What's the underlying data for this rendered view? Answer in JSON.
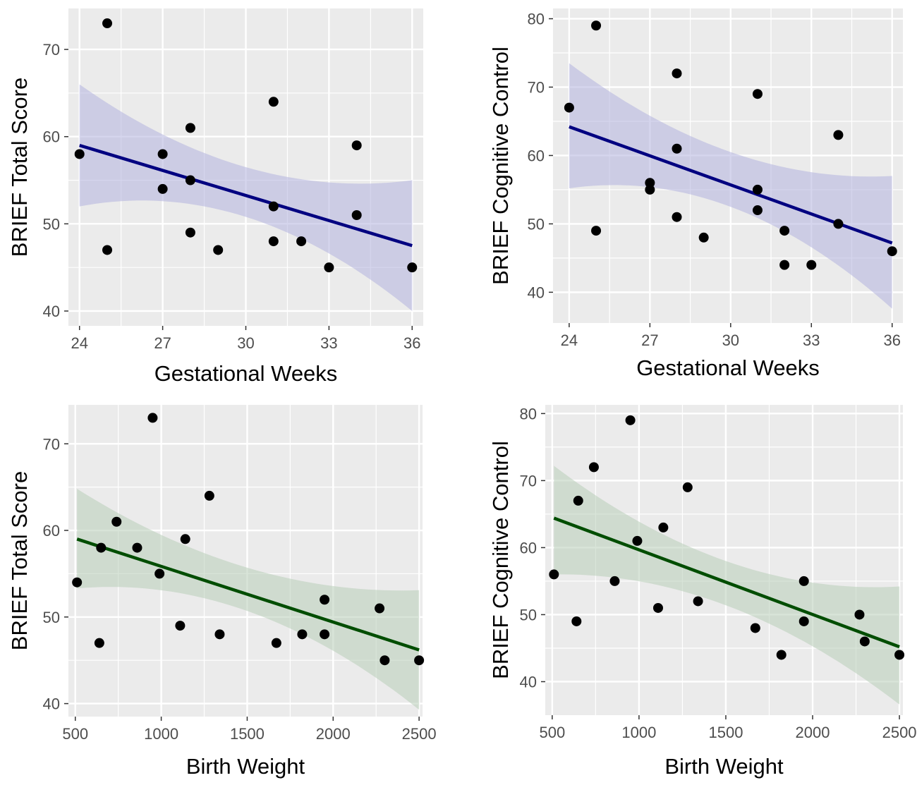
{
  "chart_data": [
    {
      "type": "scatter",
      "xlabel": "Gestational Weeks",
      "ylabel": "BRIEF Total Score",
      "xlim": [
        23.6,
        36.4
      ],
      "ylim": [
        38.3,
        74.7
      ],
      "xticks": [
        24,
        27,
        30,
        33,
        36
      ],
      "yticks": [
        40,
        50,
        60,
        70
      ],
      "grid": true,
      "points": [
        [
          24,
          58
        ],
        [
          25,
          73
        ],
        [
          25,
          47
        ],
        [
          27,
          58
        ],
        [
          27,
          54
        ],
        [
          28,
          61
        ],
        [
          28,
          55
        ],
        [
          28,
          49
        ],
        [
          29,
          47
        ],
        [
          31,
          64
        ],
        [
          31,
          52
        ],
        [
          31,
          48
        ],
        [
          32,
          48
        ],
        [
          33,
          45
        ],
        [
          34,
          59
        ],
        [
          34,
          51
        ],
        [
          36,
          45
        ]
      ],
      "fit": {
        "x": [
          24,
          36
        ],
        "y": [
          59,
          47.5
        ]
      },
      "band": {
        "x": [
          24,
          30,
          36
        ],
        "lower": [
          52,
          50.8,
          40
        ],
        "upper": [
          66,
          56.5,
          55
        ]
      },
      "line_color": "#000080",
      "band_color": "#b3b3de"
    },
    {
      "type": "scatter",
      "xlabel": "Gestational Weeks",
      "ylabel": "BRIEF Cognitive Control",
      "xlim": [
        23.4,
        36.4
      ],
      "ylim": [
        35.5,
        81.5
      ],
      "xticks": [
        24,
        27,
        30,
        33,
        36
      ],
      "yticks": [
        40,
        50,
        60,
        70,
        80
      ],
      "grid": true,
      "points": [
        [
          24,
          67
        ],
        [
          25,
          79
        ],
        [
          25,
          49
        ],
        [
          27,
          56
        ],
        [
          27,
          55
        ],
        [
          28,
          72
        ],
        [
          28,
          61
        ],
        [
          28,
          51
        ],
        [
          29,
          48
        ],
        [
          31,
          69
        ],
        [
          31,
          55
        ],
        [
          31,
          52
        ],
        [
          32,
          49
        ],
        [
          32,
          44
        ],
        [
          33,
          44
        ],
        [
          34,
          63
        ],
        [
          34,
          50
        ],
        [
          36,
          46
        ]
      ],
      "fit": {
        "x": [
          24,
          36
        ],
        "y": [
          64.2,
          47.2
        ]
      },
      "band": {
        "x": [
          24,
          30,
          36
        ],
        "lower": [
          55.2,
          52.5,
          37.6
        ],
        "upper": [
          73.5,
          60.5,
          57
        ]
      },
      "line_color": "#000080",
      "band_color": "#b3b3de"
    },
    {
      "type": "scatter",
      "xlabel": "Birth Weight",
      "ylabel": "BRIEF Total Score",
      "xlim": [
        460,
        2520
      ],
      "ylim": [
        38.5,
        74.5
      ],
      "xticks": [
        500,
        1000,
        1500,
        2000,
        2500
      ],
      "yticks": [
        40,
        50,
        60,
        70
      ],
      "grid": true,
      "points": [
        [
          510,
          54
        ],
        [
          640,
          47
        ],
        [
          650,
          58
        ],
        [
          740,
          61
        ],
        [
          860,
          58
        ],
        [
          950,
          73
        ],
        [
          990,
          55
        ],
        [
          1110,
          49
        ],
        [
          1140,
          59
        ],
        [
          1280,
          64
        ],
        [
          1340,
          48
        ],
        [
          1670,
          47
        ],
        [
          1820,
          48
        ],
        [
          1950,
          52
        ],
        [
          1950,
          48
        ],
        [
          2270,
          51
        ],
        [
          2300,
          45
        ],
        [
          2500,
          45
        ]
      ],
      "fit": {
        "x": [
          510,
          2500
        ],
        "y": [
          59,
          46.2
        ]
      },
      "band": {
        "x": [
          510,
          1500,
          2500
        ],
        "lower": [
          53.3,
          50.7,
          39.3
        ],
        "upper": [
          64.8,
          55.7,
          53.1
        ]
      },
      "line_color": "#004d00",
      "band_color": "#b8cdb8"
    },
    {
      "type": "scatter",
      "xlabel": "Birth Weight",
      "ylabel": "BRIEF Cognitive Control",
      "xlim": [
        460,
        2520
      ],
      "ylim": [
        35,
        81.3
      ],
      "xticks": [
        500,
        1000,
        1500,
        2000,
        2500
      ],
      "yticks": [
        40,
        50,
        60,
        70,
        80
      ],
      "grid": true,
      "points": [
        [
          510,
          56
        ],
        [
          640,
          49
        ],
        [
          650,
          67
        ],
        [
          740,
          72
        ],
        [
          860,
          55
        ],
        [
          950,
          79
        ],
        [
          990,
          61
        ],
        [
          1110,
          51
        ],
        [
          1140,
          63
        ],
        [
          1280,
          69
        ],
        [
          1340,
          52
        ],
        [
          1670,
          48
        ],
        [
          1820,
          44
        ],
        [
          1950,
          55
        ],
        [
          1950,
          49
        ],
        [
          2270,
          50
        ],
        [
          2300,
          46
        ],
        [
          2500,
          44
        ]
      ],
      "fit": {
        "x": [
          510,
          2500
        ],
        "y": [
          64.4,
          45.2
        ]
      },
      "band": {
        "x": [
          510,
          1500,
          2500
        ],
        "lower": [
          56,
          51.4,
          36.6
        ],
        "upper": [
          72.2,
          58,
          54.2
        ]
      },
      "line_color": "#004d00",
      "band_color": "#b8cdb8"
    }
  ]
}
